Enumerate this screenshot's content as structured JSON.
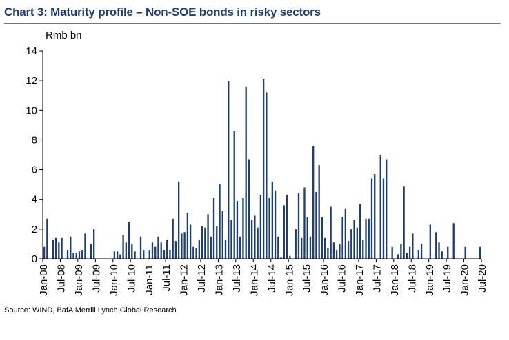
{
  "title": "Chart 3: Maturity profile – Non-SOE bonds in risky sectors",
  "source": "Source: WIND, BafA Merrill Lynch Global Research",
  "colors": {
    "bar": "#1f3e6e",
    "title": "#1f3e6e"
  },
  "chart_data": {
    "type": "bar",
    "ylabel": "Rmb bn",
    "xlabel": "",
    "ylim": [
      0,
      14
    ],
    "yticks": [
      0,
      2,
      4,
      6,
      8,
      10,
      12,
      14
    ],
    "grid": false,
    "start_month": "Jan-08",
    "xtick_labels": [
      "Jan-08",
      "Jul-08",
      "Jan-09",
      "Jul-09",
      "Jan-10",
      "Jul-10",
      "Jan-11",
      "Jul-11",
      "Jan-12",
      "Jul-12",
      "Jan-13",
      "Jul-13",
      "Jan-14",
      "Jul-14",
      "Jan-15",
      "Jul-15",
      "Jan-16",
      "Jul-16",
      "Jan-17",
      "Jul-17",
      "Jan-18",
      "Jul-18",
      "Jan-19",
      "Jul-19",
      "Jan-20",
      "Jul-20"
    ],
    "values": [
      0.8,
      2.7,
      0,
      1.3,
      1.4,
      1.1,
      1.4,
      0,
      0.6,
      1.5,
      0.4,
      0.4,
      0.5,
      0.6,
      1.7,
      0,
      1.0,
      2.0,
      0,
      0,
      0,
      0,
      0,
      0,
      0.5,
      0.5,
      0.3,
      1.6,
      1.1,
      2.5,
      1.0,
      0.5,
      0,
      1.5,
      0.6,
      0,
      0.6,
      1.1,
      0.8,
      1.5,
      1.1,
      0.6,
      1.3,
      0.6,
      2.7,
      1.2,
      5.2,
      1.7,
      1.8,
      3.1,
      2.3,
      0.8,
      0.7,
      1.3,
      2.2,
      2.1,
      3.0,
      1.5,
      4.1,
      2.2,
      5.0,
      3.2,
      1.3,
      12.0,
      2.6,
      8.6,
      3.9,
      1.5,
      4.1,
      11.6,
      6.7,
      2.6,
      2.9,
      2.1,
      4.3,
      12.1,
      11.2,
      4.1,
      5.2,
      4.6,
      1.5,
      0.1,
      3.6,
      4.3,
      0.2,
      0,
      2.0,
      4.4,
      1.4,
      4.8,
      2.8,
      1.5,
      7.6,
      4.5,
      6.3,
      2.8,
      1.4,
      0.7,
      3.5,
      1.1,
      0.6,
      1.0,
      2.8,
      3.4,
      1.2,
      2.0,
      2.6,
      2.1,
      3.7,
      1.3,
      2.7,
      2.7,
      5.4,
      5.7,
      0,
      7.0,
      5.4,
      6.7,
      0,
      0.8,
      0,
      0.3,
      1.0,
      4.9,
      0.4,
      0.8,
      1.7,
      0,
      0.6,
      1.0,
      0,
      0,
      2.3,
      0,
      1.8,
      1.1,
      0.5,
      0,
      0.8,
      0,
      2.4,
      0,
      0,
      0,
      0.8,
      0,
      0,
      0,
      0,
      0.8
    ]
  }
}
